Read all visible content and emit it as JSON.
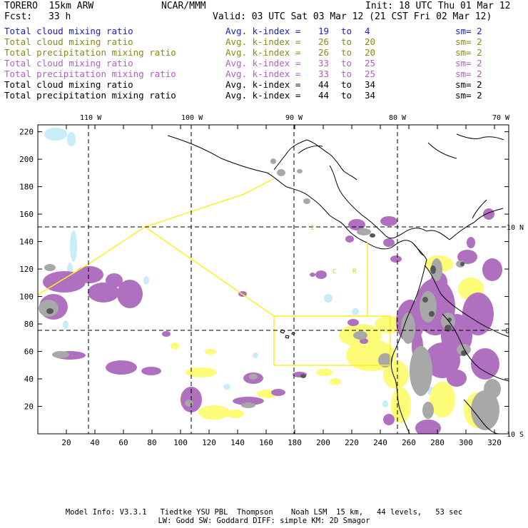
{
  "header": {
    "model": "TORERO  15km ARW",
    "org": "NCAR/MMM",
    "init": "Init: 18 UTC Thu 01 Mar 12",
    "fcst_label": "Fcst:",
    "fcst_value": "33 h",
    "valid": "Valid: 03 UTC Sat 03 Mar 12 (21 CST Fri 02 Mar 12)"
  },
  "legend": [
    {
      "field": "Total cloud mixing ratio",
      "kindex": "Avg. k-index =",
      "k1": "19",
      "to": "to",
      "k2": "4",
      "sm": "sm= 2",
      "color": "#1a1ad0"
    },
    {
      "field": "Total cloud mixing ratio",
      "kindex": "Avg. k-index =",
      "k1": "26",
      "to": "to",
      "k2": "20",
      "sm": "sm= 2",
      "color": "#8a8a14"
    },
    {
      "field": "Total precipitation mixing ratio",
      "kindex": "Avg. k-index =",
      "k1": "26",
      "to": "to",
      "k2": "20",
      "sm": "sm= 2",
      "color": "#8a8a14"
    },
    {
      "field": "Total cloud mixing ratio",
      "kindex": "Avg. k-index =",
      "k1": "33",
      "to": "to",
      "k2": "25",
      "sm": "sm= 2",
      "color": "#b060c0"
    },
    {
      "field": "Total precipitation mixing ratio",
      "kindex": "Avg. k-index =",
      "k1": "33",
      "to": "to",
      "k2": "25",
      "sm": "sm= 2",
      "color": "#b060c0"
    },
    {
      "field": "Total cloud mixing ratio",
      "kindex": "Avg. k-index =",
      "k1": "44",
      "to": "to",
      "k2": "34",
      "sm": "sm= 2",
      "color": "#000000"
    },
    {
      "field": "Total precipitation mixing ratio",
      "kindex": "Avg. k-index =",
      "k1": "44",
      "to": "to",
      "k2": "34",
      "sm": "sm= 2",
      "color": "#000000"
    }
  ],
  "map": {
    "lon_labels": [
      "110 W",
      "100 W",
      "90 W",
      "80 W",
      "70 W"
    ],
    "lat_labels": [
      "10 N",
      "0",
      "10 S"
    ],
    "x_ticks": [
      "20",
      "40",
      "60",
      "80",
      "100",
      "120",
      "140",
      "160",
      "180",
      "200",
      "220",
      "240",
      "260",
      "280",
      "300",
      "320"
    ],
    "y_ticks": [
      "220",
      "200",
      "180",
      "160",
      "140",
      "120",
      "100",
      "80",
      "60",
      "40",
      "20"
    ],
    "region_labels": [
      "I",
      "C",
      "R"
    ],
    "colors": {
      "land": "#000000",
      "gridlines": "#000000",
      "yellow_region": "#ffee22",
      "cloud_light": "#c8ecf8",
      "precip_yellow": "#fcfc78",
      "precip_purple": "#b070c0",
      "cloud_gray": "#a8a8a8",
      "cloud_dark": "#585858"
    }
  },
  "footer": {
    "line1": "Model Info: V3.3.1   Tiedtke YSU PBL  Thompson    Noah LSM  15 km,   44 levels,   53 sec",
    "line2": "LW: Godd SW: Goddard DIFF: simple KM: 2D Smagor"
  }
}
